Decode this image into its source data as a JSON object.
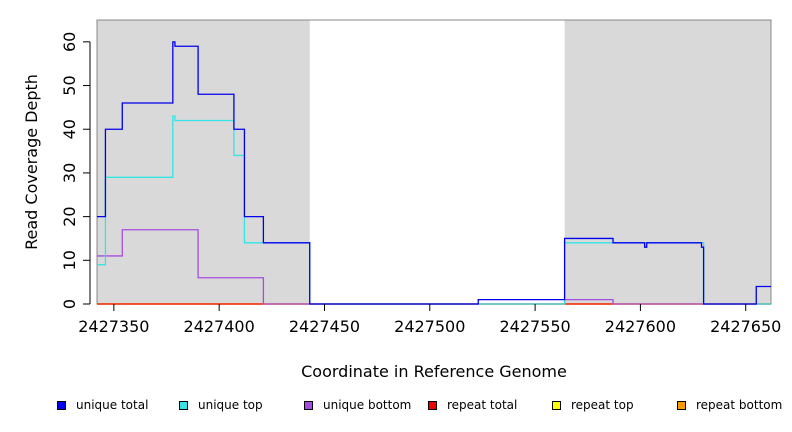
{
  "chart_data": {
    "type": "line",
    "xlabel": "Coordinate in Reference Genome",
    "ylabel": "Read Coverage Depth",
    "xlim": [
      2427342,
      2427662
    ],
    "ylim": [
      0,
      65
    ],
    "x_ticks": [
      2427350,
      2427400,
      2427450,
      2427500,
      2427550,
      2427600,
      2427650
    ],
    "y_ticks": [
      0,
      10,
      20,
      30,
      40,
      50,
      60
    ],
    "shaded_regions": [
      [
        2427342,
        2427443
      ],
      [
        2427564,
        2427662
      ]
    ],
    "grid": false,
    "legend_position": "bottom",
    "series": [
      {
        "name": "unique total",
        "color": "#0000ee",
        "x": [
          2427342,
          2427346,
          2427354,
          2427378,
          2427379,
          2427390,
          2427407,
          2427412,
          2427421,
          2427443,
          2427523,
          2427564,
          2427587,
          2427602,
          2427603,
          2427629,
          2427630,
          2427655,
          2427662
        ],
        "y": [
          20,
          40,
          46,
          60,
          59,
          48,
          40,
          20,
          14,
          0,
          1,
          15,
          14,
          13,
          14,
          13,
          0,
          4,
          4
        ]
      },
      {
        "name": "unique top",
        "color": "#33e5e5",
        "x": [
          2427342,
          2427346,
          2427378,
          2427379,
          2427407,
          2427412,
          2427443,
          2427564,
          2427630,
          2427662
        ],
        "y": [
          9,
          29,
          43,
          42,
          34,
          14,
          0,
          14,
          0,
          0
        ]
      },
      {
        "name": "unique bottom",
        "color": "#a64ce0",
        "x": [
          2427342,
          2427354,
          2427390,
          2427421,
          2427564,
          2427587,
          2427662
        ],
        "y": [
          11,
          17,
          6,
          0,
          1,
          0,
          0
        ]
      },
      {
        "name": "repeat total",
        "color": "#ee0000",
        "x": [
          2427342,
          2427662
        ],
        "y": [
          0,
          0
        ]
      },
      {
        "name": "repeat top",
        "color": "#ffff00",
        "x": [
          2427342,
          2427662
        ],
        "y": [
          0,
          0
        ]
      },
      {
        "name": "repeat bottom",
        "color": "#ff9900",
        "x": [
          2427342,
          2427662
        ],
        "y": [
          0,
          0
        ]
      }
    ]
  }
}
